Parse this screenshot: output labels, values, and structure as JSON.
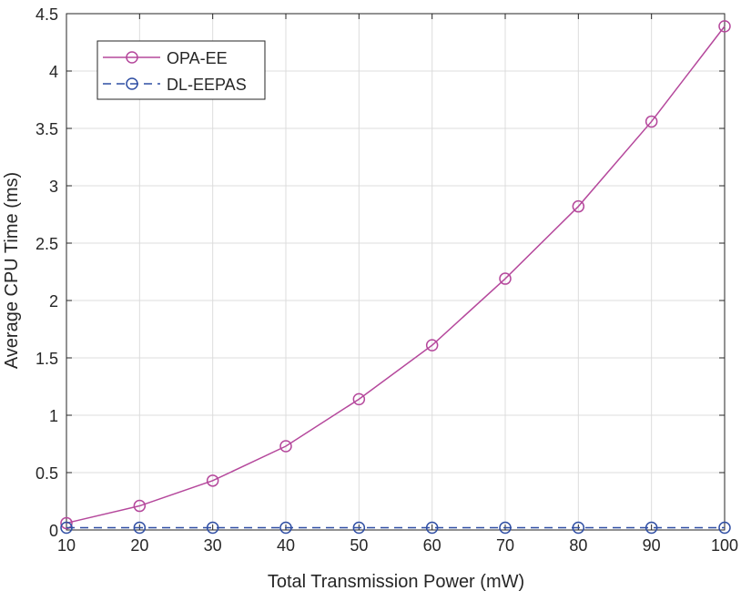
{
  "chart_data": {
    "type": "line",
    "xlabel": "Total Transmission Power (mW)",
    "ylabel": "Average CPU Time (ms)",
    "x": [
      10,
      20,
      30,
      40,
      50,
      60,
      70,
      80,
      90,
      100
    ],
    "xlim": [
      10,
      100
    ],
    "ylim": [
      0,
      4.5
    ],
    "xticks": [
      "10",
      "20",
      "30",
      "40",
      "50",
      "60",
      "70",
      "80",
      "90",
      "100"
    ],
    "yticks": [
      "0",
      "0.5",
      "1",
      "1.5",
      "2",
      "2.5",
      "3",
      "3.5",
      "4",
      "4.5"
    ],
    "grid": true,
    "legend_position": "top-left",
    "series": [
      {
        "name": "OPA-EE",
        "color": "#b5489c",
        "line_style": "solid",
        "marker": "circle",
        "values": [
          0.06,
          0.21,
          0.43,
          0.73,
          1.14,
          1.61,
          2.19,
          2.82,
          3.56,
          4.39
        ]
      },
      {
        "name": "DL-EEPAS",
        "color": "#2f4ea3",
        "line_style": "dashed",
        "marker": "circle",
        "values": [
          0.02,
          0.02,
          0.02,
          0.02,
          0.02,
          0.02,
          0.02,
          0.02,
          0.02,
          0.02
        ]
      }
    ]
  }
}
